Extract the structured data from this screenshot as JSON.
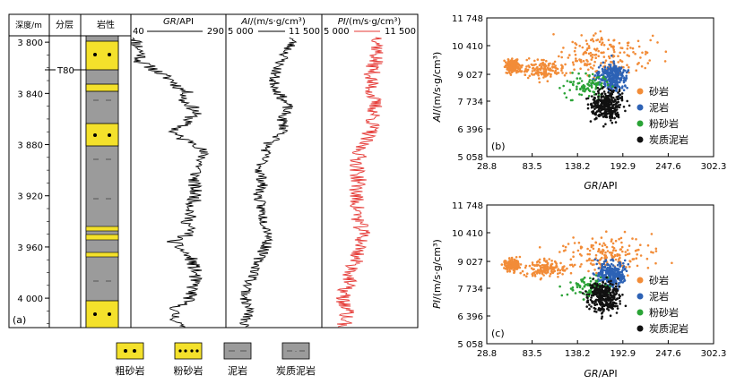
{
  "log_panel": {
    "label": "(a)",
    "headers": {
      "depth": "深度/m",
      "layer": "分层",
      "lith": "岩性",
      "gr_name": "GR",
      "gr_unit": "/API",
      "gr_min": "40",
      "gr_max": "290",
      "ai_name": "AI",
      "ai_unit": "/(m/s·g/cm³)",
      "ai_min": "5 000",
      "ai_max": "11 500",
      "pi_name": "PI",
      "pi_unit": "/(m/s·g/cm³)",
      "pi_min": "5 000",
      "pi_max": "11 500"
    },
    "horizon": "T80",
    "depth_ticks": [
      {
        "v": 3800,
        "label": "3 800"
      },
      {
        "v": 3840,
        "label": "3 840"
      },
      {
        "v": 3880,
        "label": "3 880"
      },
      {
        "v": 3920,
        "label": "3 920"
      },
      {
        "v": 3960,
        "label": "3 960"
      },
      {
        "v": 4000,
        "label": "4 000"
      }
    ]
  },
  "legend_bottom": [
    {
      "key": "coarse",
      "label": "粗砂岩"
    },
    {
      "key": "silt",
      "label": "粉砂岩"
    },
    {
      "key": "mud",
      "label": "泥岩"
    },
    {
      "key": "carb",
      "label": "炭质泥岩"
    }
  ],
  "scatter_legend": [
    {
      "label": "砂岩",
      "color": "#f28c38"
    },
    {
      "label": "泥岩",
      "color": "#2d62b5"
    },
    {
      "label": "粉砂岩",
      "color": "#2aa336"
    },
    {
      "label": "炭质泥岩",
      "color": "#111111"
    }
  ],
  "chart_data": [
    {
      "type": "line",
      "name": "well-log",
      "depth_range": [
        3795,
        4023
      ],
      "series": [
        {
          "name": "GR",
          "unit": "API",
          "range": [
            40,
            290
          ],
          "depth_values": [
            [
              3800,
              55
            ],
            [
              3810,
              70
            ],
            [
              3815,
              62
            ],
            [
              3820,
              95
            ],
            [
              3825,
              120
            ],
            [
              3830,
              150
            ],
            [
              3835,
              165
            ],
            [
              3840,
              190
            ],
            [
              3845,
              175
            ],
            [
              3850,
              200
            ],
            [
              3855,
              210
            ],
            [
              3860,
              195
            ],
            [
              3865,
              175
            ],
            [
              3870,
              150
            ],
            [
              3875,
              170
            ],
            [
              3880,
              220
            ],
            [
              3890,
              230
            ],
            [
              3900,
              215
            ],
            [
              3910,
              205
            ],
            [
              3920,
              210
            ],
            [
              3930,
              200
            ],
            [
              3940,
              190
            ],
            [
              3950,
              195
            ],
            [
              3955,
              150
            ],
            [
              3960,
              165
            ],
            [
              3970,
              200
            ],
            [
              3980,
              210
            ],
            [
              3990,
              205
            ],
            [
              4000,
              195
            ],
            [
              4010,
              150
            ],
            [
              4020,
              165
            ]
          ]
        },
        {
          "name": "AI",
          "unit": "m/s·g/cm³",
          "range": [
            5000,
            11500
          ],
          "depth_values": [
            [
              3800,
              9500
            ],
            [
              3810,
              9000
            ],
            [
              3820,
              8500
            ],
            [
              3830,
              8200
            ],
            [
              3840,
              8600
            ],
            [
              3850,
              9200
            ],
            [
              3860,
              8800
            ],
            [
              3870,
              9000
            ],
            [
              3880,
              7800
            ],
            [
              3890,
              7600
            ],
            [
              3900,
              7300
            ],
            [
              3910,
              7500
            ],
            [
              3920,
              7200
            ],
            [
              3930,
              7400
            ],
            [
              3940,
              7600
            ],
            [
              3950,
              8000
            ],
            [
              3960,
              7700
            ],
            [
              3970,
              7200
            ],
            [
              3980,
              7000
            ],
            [
              3990,
              6500
            ],
            [
              4000,
              6300
            ],
            [
              4010,
              6600
            ],
            [
              4020,
              6200
            ]
          ]
        },
        {
          "name": "PI",
          "unit": "m/s·g/cm³",
          "range": [
            5000,
            11500
          ],
          "depth_values": [
            [
              3800,
              8900
            ],
            [
              3810,
              8700
            ],
            [
              3820,
              8500
            ],
            [
              3830,
              8300
            ],
            [
              3840,
              8400
            ],
            [
              3850,
              8600
            ],
            [
              3860,
              8500
            ],
            [
              3870,
              8300
            ],
            [
              3880,
              7700
            ],
            [
              3890,
              7500
            ],
            [
              3900,
              7400
            ],
            [
              3910,
              7500
            ],
            [
              3920,
              7300
            ],
            [
              3930,
              7400
            ],
            [
              3940,
              7500
            ],
            [
              3950,
              7800
            ],
            [
              3960,
              7600
            ],
            [
              3970,
              7300
            ],
            [
              3980,
              7000
            ],
            [
              3990,
              6700
            ],
            [
              4000,
              6400
            ],
            [
              4010,
              6700
            ],
            [
              4020,
              6500
            ]
          ]
        }
      ]
    },
    {
      "type": "scatter",
      "name": "AI-vs-GR",
      "label": "(b)",
      "xlabel_name": "GR",
      "xlabel_unit": "/API",
      "ylabel_name": "AI",
      "ylabel_unit": "/(m/s·g/cm³)",
      "xlim": [
        28.8,
        302.3
      ],
      "ylim": [
        5058,
        11748
      ],
      "xticks": [
        28.8,
        83.5,
        138.2,
        192.9,
        247.6,
        302.3
      ],
      "yticks": [
        5058,
        6396,
        7734,
        9027,
        10410,
        11748
      ],
      "xtick_labels": [
        "28.8",
        "83.5",
        "138.2",
        "192.9",
        "247.6",
        "302.3"
      ],
      "ytick_labels": [
        "5 058",
        "6 396",
        "7 734",
        "9 027",
        "10 410",
        "11 748"
      ],
      "clusters": [
        {
          "group": "砂岩",
          "color": "#f28c38",
          "n": 460,
          "parts": [
            {
              "w": 0.32,
              "cx": 60,
              "cy": 9450,
              "sx": 7,
              "sy": 230
            },
            {
              "w": 0.3,
              "cx": 100,
              "cy": 9250,
              "sx": 18,
              "sy": 330
            },
            {
              "w": 0.38,
              "cx": 175,
              "cy": 9900,
              "sx": 42,
              "sy": 650
            }
          ]
        },
        {
          "group": "泥岩",
          "color": "#2d62b5",
          "n": 300,
          "parts": [
            {
              "w": 1,
              "cx": 180,
              "cy": 8900,
              "sx": 12,
              "sy": 480
            }
          ]
        },
        {
          "group": "粉砂岩",
          "color": "#2aa336",
          "n": 90,
          "parts": [
            {
              "w": 1,
              "cx": 150,
              "cy": 8500,
              "sx": 18,
              "sy": 380
            }
          ]
        },
        {
          "group": "炭质泥岩",
          "color": "#111111",
          "n": 320,
          "parts": [
            {
              "w": 1,
              "cx": 172,
              "cy": 7500,
              "sx": 14,
              "sy": 520
            }
          ]
        }
      ]
    },
    {
      "type": "scatter",
      "name": "PI-vs-GR",
      "label": "(c)",
      "xlabel_name": "GR",
      "xlabel_unit": "/API",
      "ylabel_name": "PI",
      "ylabel_unit": "/(m/s·g/cm³)",
      "xlim": [
        28.8,
        302.3
      ],
      "ylim": [
        5058,
        11748
      ],
      "xticks": [
        28.8,
        83.5,
        138.2,
        192.9,
        247.6,
        302.3
      ],
      "yticks": [
        5058,
        6396,
        7734,
        9027,
        10410,
        11748
      ],
      "xtick_labels": [
        "28.8",
        "83.5",
        "138.2",
        "192.9",
        "247.6",
        "302.3"
      ],
      "ytick_labels": [
        "5 058",
        "6 396",
        "7 734",
        "9 027",
        "10 410",
        "11 748"
      ],
      "clusters": [
        {
          "group": "砂岩",
          "color": "#f28c38",
          "n": 460,
          "parts": [
            {
              "w": 0.34,
              "cx": 60,
              "cy": 8850,
              "sx": 7,
              "sy": 200
            },
            {
              "w": 0.3,
              "cx": 100,
              "cy": 8700,
              "sx": 18,
              "sy": 320
            },
            {
              "w": 0.36,
              "cx": 175,
              "cy": 9400,
              "sx": 42,
              "sy": 600
            }
          ]
        },
        {
          "group": "泥岩",
          "color": "#2d62b5",
          "n": 300,
          "parts": [
            {
              "w": 1,
              "cx": 180,
              "cy": 8400,
              "sx": 12,
              "sy": 400
            }
          ]
        },
        {
          "group": "粉砂岩",
          "color": "#2aa336",
          "n": 90,
          "parts": [
            {
              "w": 1,
              "cx": 150,
              "cy": 7800,
              "sx": 18,
              "sy": 380
            }
          ]
        },
        {
          "group": "炭质泥岩",
          "color": "#111111",
          "n": 320,
          "parts": [
            {
              "w": 1,
              "cx": 170,
              "cy": 7300,
              "sx": 14,
              "sy": 520
            }
          ]
        }
      ]
    }
  ]
}
